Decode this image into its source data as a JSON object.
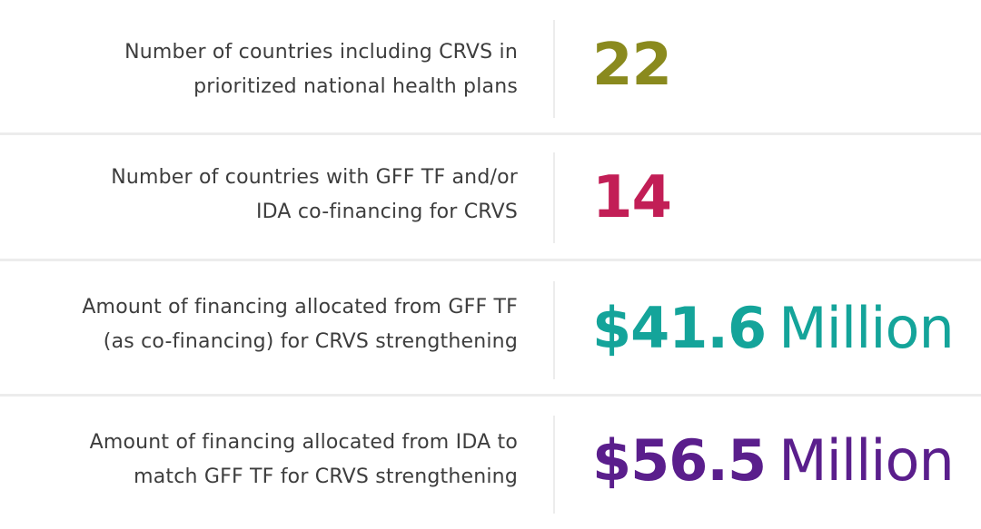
{
  "colors": {
    "olive": "#8a8a1e",
    "crimson": "#c21e56",
    "teal": "#14a49a",
    "purple": "#5a1e8c"
  },
  "stats": [
    {
      "desc_line1": "Number of countries including CRVS in",
      "desc_line2": "prioritized national health plans",
      "value": "22",
      "unit": ""
    },
    {
      "desc_line1": "Number of countries with GFF TF and/or",
      "desc_line2": "IDA co-financing for CRVS",
      "value": "14",
      "unit": ""
    },
    {
      "desc_line1": "Amount of financing allocated from GFF TF",
      "desc_line2": "(as co-financing) for CRVS strengthening",
      "value": "$41.6",
      "unit": "Million"
    },
    {
      "desc_line1": "Amount of financing allocated from IDA to",
      "desc_line2": "match GFF TF for CRVS strengthening",
      "value": "$56.5",
      "unit": "Million"
    }
  ]
}
